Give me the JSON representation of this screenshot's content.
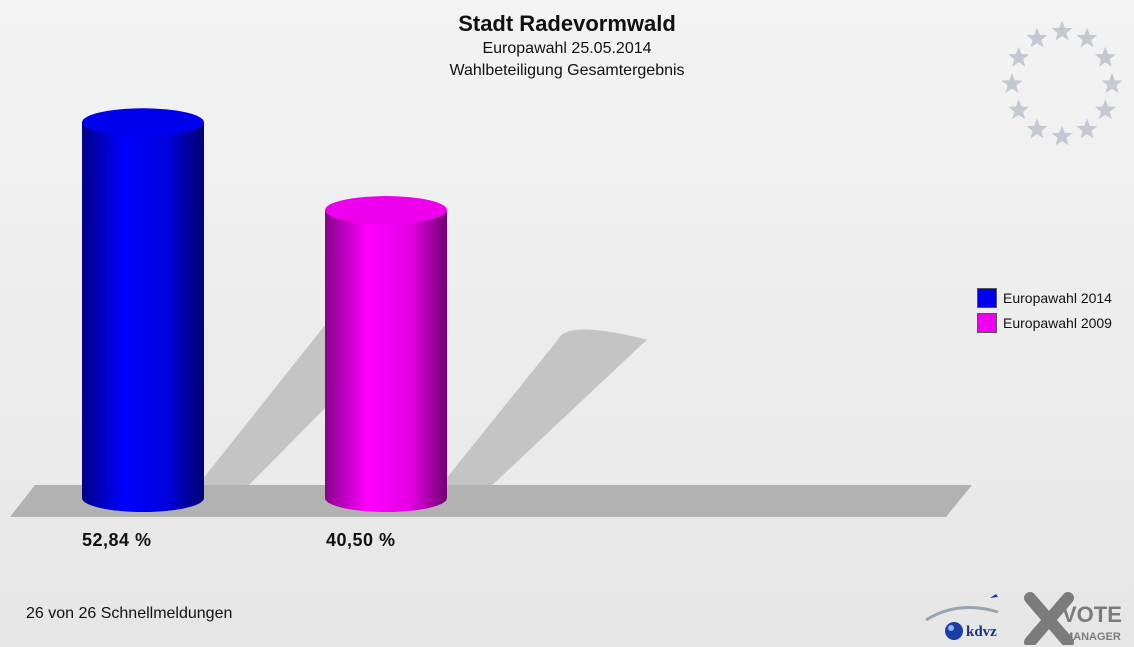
{
  "header": {
    "title": "Stadt Radevormwald",
    "subtitle": "Europawahl 25.05.2014",
    "subtitle2": "Wahlbeteiligung Gesamtergebnis"
  },
  "chart_data": {
    "type": "bar",
    "title": "Stadt Radevormwald",
    "subtitle": "Europawahl 25.05.2014 · Wahlbeteiligung Gesamtergebnis",
    "categories": [
      "Europawahl 2014",
      "Europawahl 2009"
    ],
    "values": [
      52.84,
      40.5
    ],
    "value_labels": [
      "52,84 %",
      "40,50 %"
    ],
    "colors": [
      "#0000ee",
      "#ee00ee"
    ],
    "ylim": [
      0,
      60
    ],
    "legend": "right",
    "grid": false
  },
  "legend": {
    "items": [
      {
        "label": "Europawahl 2014",
        "color": "#0000ee"
      },
      {
        "label": "Europawahl 2009",
        "color": "#ee00ee"
      }
    ]
  },
  "footer": {
    "status": "26 von 26 Schnellmeldungen"
  },
  "branding": {
    "kdvz": "kdvz",
    "vote": "VOTE",
    "manager": "MANAGER"
  },
  "icons": {
    "emblem": "eu-stars-icon"
  }
}
